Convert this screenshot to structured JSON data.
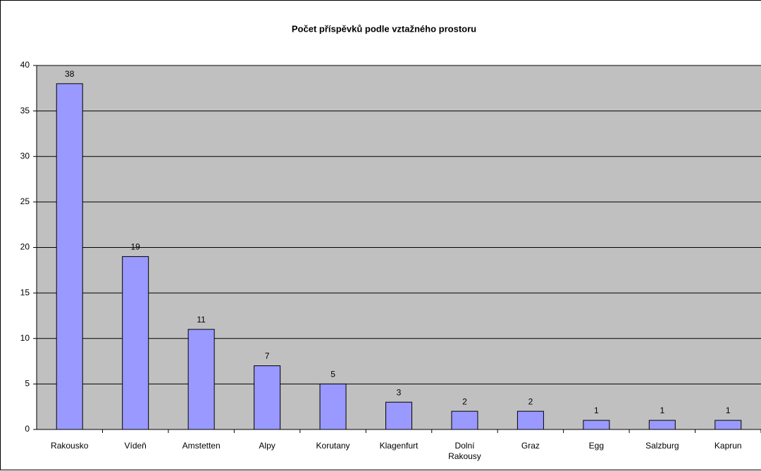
{
  "chart_data": {
    "type": "bar",
    "title": "Počet příspěvků podle vztažného prostoru",
    "categories": [
      "Rakousko",
      "Vídeň",
      "Amstetten",
      "Alpy",
      "Korutany",
      "Klagenfurt",
      "Dolní Rakousy",
      "Graz",
      "Egg",
      "Salzburg",
      "Kaprun"
    ],
    "values": [
      38,
      19,
      11,
      7,
      5,
      3,
      2,
      2,
      1,
      1,
      1
    ],
    "color": "#9999ff",
    "ylim": [
      0,
      40
    ],
    "yticks": [
      0,
      5,
      10,
      15,
      20,
      25,
      30,
      35,
      40
    ],
    "grid": true
  }
}
